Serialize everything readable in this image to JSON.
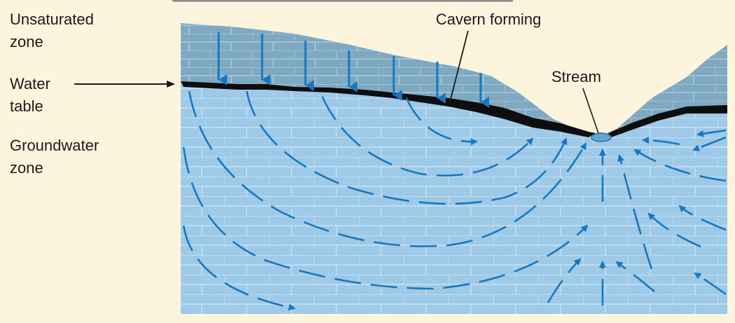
{
  "labels": {
    "unsaturated_zone": [
      "Unsaturated",
      "zone"
    ],
    "water_table": [
      "Water",
      "table"
    ],
    "groundwater_zone": [
      "Groundwater",
      "zone"
    ],
    "cavern_forming": "Cavern forming",
    "stream": "Stream"
  },
  "colors": {
    "background": "#fdf4dd",
    "unsaturated_rock": "#7fa8c1",
    "saturated_rock": "#9ecae8",
    "water_table_band": "#0e0e0e",
    "flow_arrow": "#1479c2",
    "rock_joint_line": "#c8e2f4"
  }
}
